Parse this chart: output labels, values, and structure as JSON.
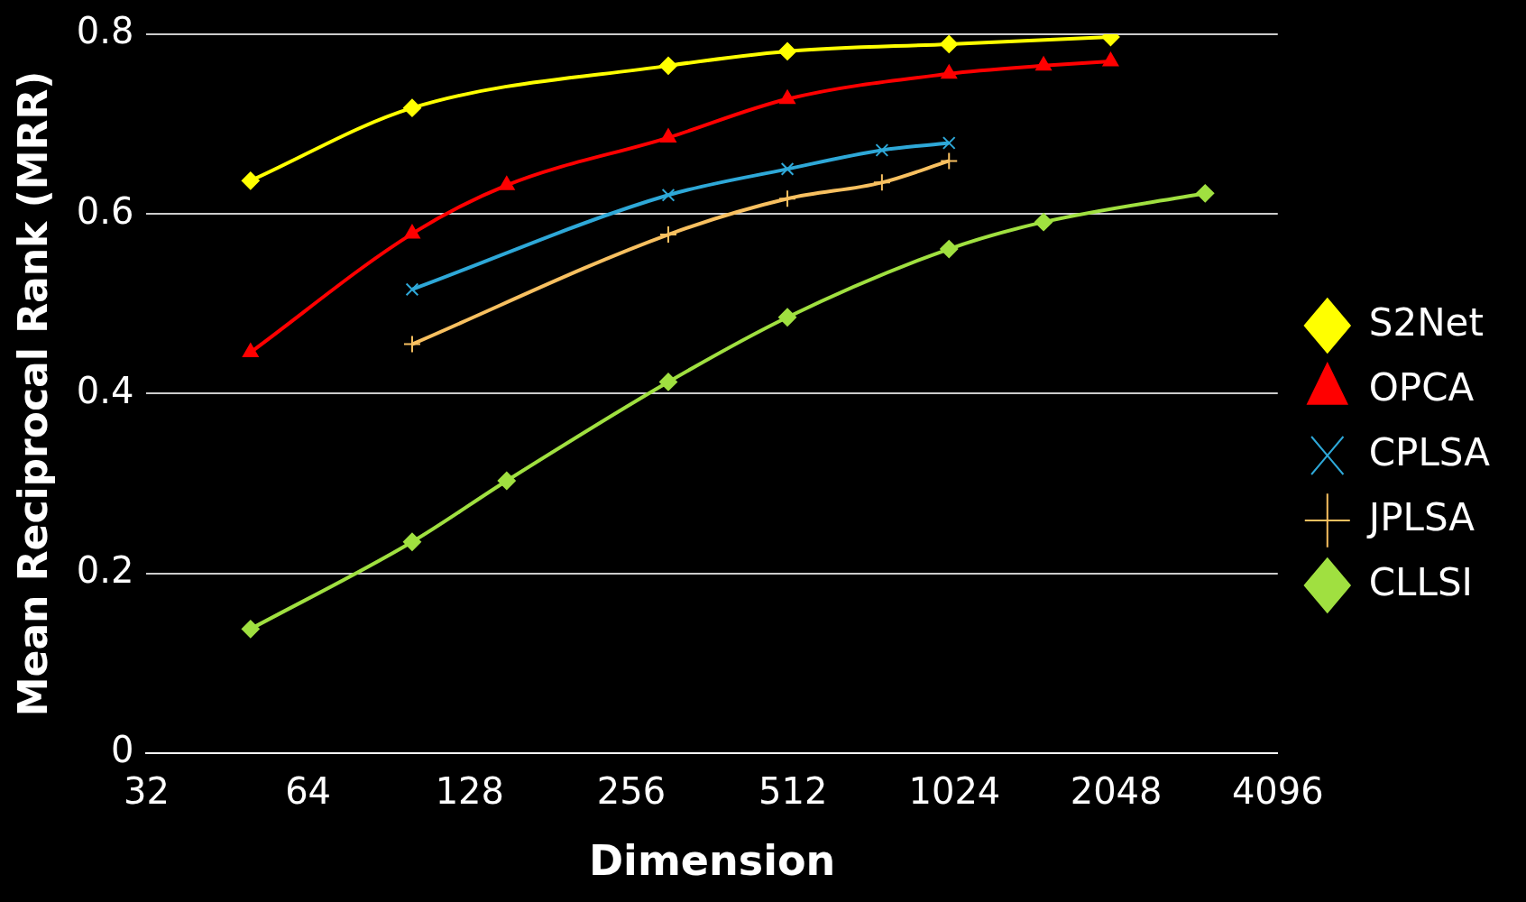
{
  "chart_data": {
    "type": "line",
    "xlabel": "Dimension",
    "ylabel": "Mean Reciprocal Rank (MRR)",
    "log": "x",
    "xlim": [
      32,
      4096
    ],
    "xticks": [
      32,
      64,
      128,
      256,
      512,
      1024,
      2048,
      4096
    ],
    "ylim": [
      0,
      0.8
    ],
    "yticks": [
      0,
      0.2,
      0.4,
      0.6,
      0.8
    ],
    "grid": "y",
    "legend": "right",
    "series": [
      {
        "name": "S2Net",
        "color": "#ffff00",
        "marker": "diamond",
        "x": [
          50,
          100,
          300,
          500,
          1000,
          2000
        ],
        "values": [
          0.637,
          0.718,
          0.765,
          0.781,
          0.789,
          0.797
        ]
      },
      {
        "name": "OPCA",
        "color": "#ff0000",
        "marker": "triangle",
        "x": [
          50,
          100,
          150,
          300,
          500,
          1000,
          1500,
          2000
        ],
        "values": [
          0.446,
          0.578,
          0.632,
          0.685,
          0.728,
          0.756,
          0.765,
          0.77
        ]
      },
      {
        "name": "CPLSA",
        "color": "#2ea8d8",
        "marker": "cross",
        "x": [
          100,
          300,
          500,
          750,
          1000
        ],
        "values": [
          0.516,
          0.621,
          0.65,
          0.671,
          0.679
        ]
      },
      {
        "name": "JPLSA",
        "color": "#f8c060",
        "marker": "plus",
        "x": [
          100,
          300,
          500,
          750,
          1000
        ],
        "values": [
          0.455,
          0.577,
          0.617,
          0.635,
          0.659
        ]
      },
      {
        "name": "CLLSI",
        "color": "#a0e040",
        "marker": "diamond",
        "x": [
          50,
          100,
          150,
          300,
          500,
          1000,
          1500,
          3000
        ],
        "values": [
          0.138,
          0.235,
          0.303,
          0.413,
          0.485,
          0.561,
          0.591,
          0.623
        ]
      }
    ]
  }
}
